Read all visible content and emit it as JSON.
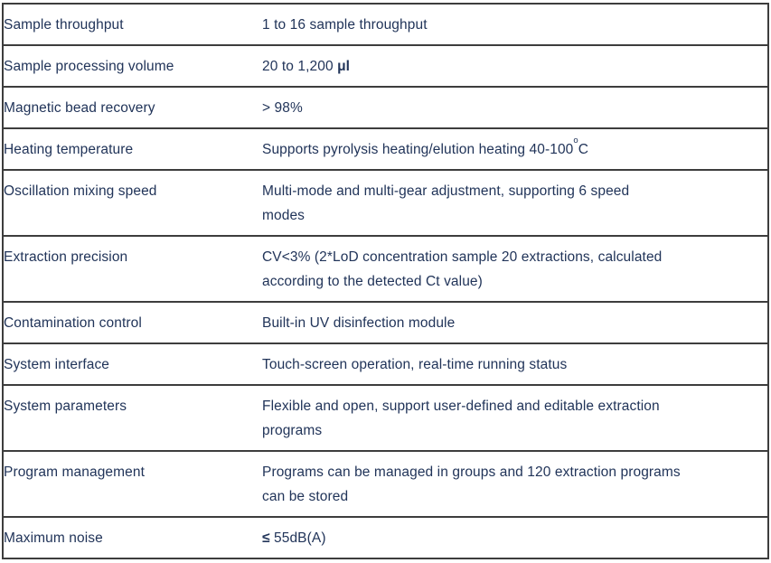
{
  "colors": {
    "text": "#213459",
    "border": "#3d3d3d",
    "background": "#ffffff"
  },
  "table": {
    "rows": [
      {
        "label": "Sample throughput",
        "value": [
          {
            "t": "1 to 16 sample throughput"
          }
        ]
      },
      {
        "label": "Sample processing volume",
        "value": [
          {
            "t": "20 to 1,200 "
          },
          {
            "t": "μl",
            "b": true
          }
        ]
      },
      {
        "label": "Magnetic bead recovery",
        "value": [
          {
            "t": "> 98%"
          }
        ]
      },
      {
        "label": "Heating temperature",
        "value": [
          {
            "t": "Supports pyrolysis heating/elution heating 40-100"
          },
          {
            "t": "o",
            "sup": true
          },
          {
            "t": "C"
          }
        ]
      },
      {
        "label": "Oscillation mixing speed",
        "value": [
          {
            "t": "Multi-mode and multi-gear adjustment, supporting 6 speed\nmodes"
          }
        ]
      },
      {
        "label": "Extraction precision",
        "value": [
          {
            "t": "CV<3% (2*LoD concentration sample 20 extractions, calculated\naccording to the detected Ct value)"
          }
        ]
      },
      {
        "label": "Contamination control",
        "value": [
          {
            "t": "Built-in UV disinfection module"
          }
        ]
      },
      {
        "label": "System interface",
        "value": [
          {
            "t": "Touch-screen operation, real-time running status"
          }
        ]
      },
      {
        "label": "System parameters",
        "value": [
          {
            "t": "Flexible and open, support user-defined and editable extraction\nprograms"
          }
        ]
      },
      {
        "label": "Program management",
        "value": [
          {
            "t": "Programs can be managed in groups and 120 extraction programs\ncan be stored"
          }
        ]
      },
      {
        "label": "Maximum noise",
        "value": [
          {
            "t": "≤",
            "b": true
          },
          {
            "t": " 55dB(A)"
          }
        ]
      }
    ]
  }
}
